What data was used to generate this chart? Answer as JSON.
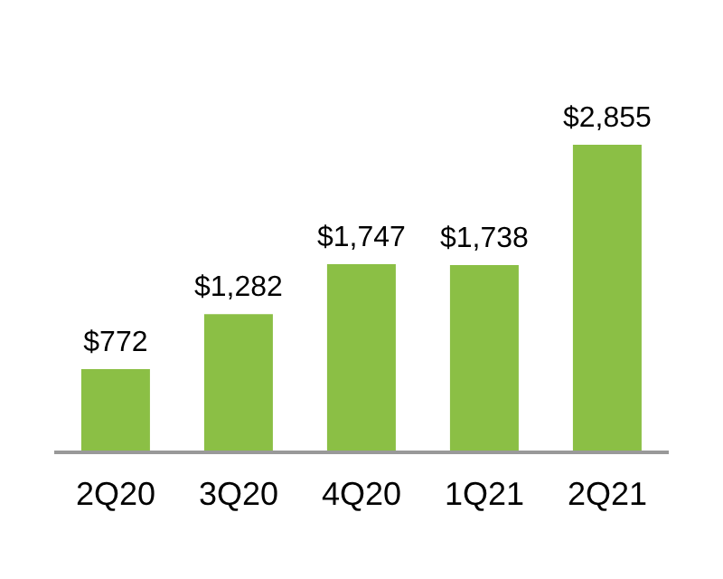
{
  "chart_data": {
    "type": "bar",
    "categories": [
      "2Q20",
      "3Q20",
      "4Q20",
      "1Q21",
      "2Q21"
    ],
    "values": [
      772,
      1282,
      1747,
      1738,
      2855
    ],
    "value_labels": [
      "$772",
      "$1,282",
      "$1,747",
      "$1,738",
      "$2,855"
    ],
    "color": "#8bbf45"
  }
}
